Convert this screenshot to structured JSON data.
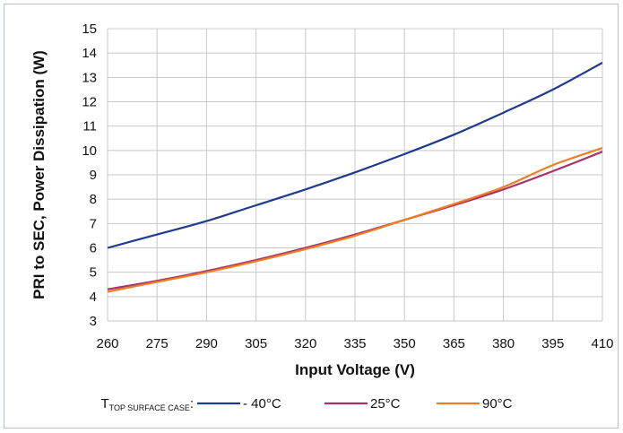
{
  "chart_data": {
    "type": "line",
    "xlabel": "Input Voltage (V)",
    "ylabel": "PRI to SEC, Power Dissipation (W)",
    "xlim": [
      260,
      410
    ],
    "ylim": [
      3,
      15
    ],
    "x_ticks": [
      260,
      275,
      290,
      305,
      320,
      335,
      350,
      365,
      380,
      395,
      410
    ],
    "y_ticks": [
      3,
      4,
      5,
      6,
      7,
      8,
      9,
      10,
      11,
      12,
      13,
      14,
      15
    ],
    "x_tick_labels": [
      "260",
      "275",
      "290",
      "305",
      "320",
      "335",
      "350",
      "365",
      "380",
      "395",
      "410"
    ],
    "y_tick_labels": [
      "3",
      "4",
      "5",
      "6",
      "7",
      "8",
      "9",
      "10",
      "11",
      "12",
      "13",
      "14",
      "15"
    ],
    "grid": true,
    "legend": {
      "position": "bottom",
      "title_main": "T",
      "title_sub": "TOP SURFACE CASE",
      "title_suffix": ":"
    },
    "series": [
      {
        "name": "- 40°C",
        "color": "#1f3b8f",
        "x": [
          260,
          275,
          290,
          305,
          320,
          335,
          350,
          365,
          380,
          395,
          410
        ],
        "y": [
          6.0,
          6.55,
          7.1,
          7.75,
          8.4,
          9.1,
          9.85,
          10.65,
          11.55,
          12.5,
          13.6
        ]
      },
      {
        "name": "25°C",
        "color": "#a8336b",
        "x": [
          260,
          275,
          290,
          305,
          320,
          335,
          350,
          365,
          380,
          395,
          410
        ],
        "y": [
          4.3,
          4.65,
          5.05,
          5.5,
          6.0,
          6.55,
          7.15,
          7.75,
          8.4,
          9.15,
          9.95
        ]
      },
      {
        "name": "90°C",
        "color": "#ef7d22",
        "x": [
          260,
          275,
          290,
          305,
          320,
          335,
          350,
          365,
          380,
          395,
          410
        ],
        "y": [
          4.2,
          4.6,
          5.0,
          5.45,
          5.95,
          6.5,
          7.15,
          7.8,
          8.5,
          9.4,
          10.1
        ]
      }
    ]
  }
}
